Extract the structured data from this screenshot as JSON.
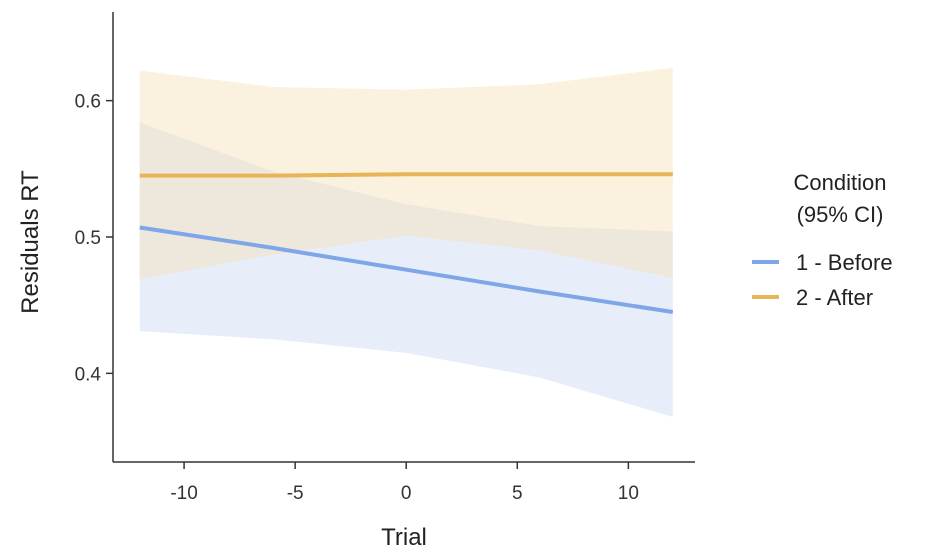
{
  "chart_data": {
    "type": "line",
    "title": "",
    "xlabel": "Trial",
    "ylabel": "Residuals RT",
    "xlim": [
      -13.2,
      13.0
    ],
    "ylim": [
      0.335,
      0.665
    ],
    "x_ticks": [
      -10,
      -5,
      0,
      5,
      10
    ],
    "x_tick_labels": [
      "-10",
      "-5",
      "0",
      "5",
      "10"
    ],
    "y_ticks": [
      0.4,
      0.5,
      0.6
    ],
    "y_tick_labels": [
      "0.4",
      "0.5",
      "0.6"
    ],
    "grid": false,
    "legend": {
      "title_lines": [
        "Condition",
        "(95% CI)"
      ],
      "position": "right"
    },
    "series": [
      {
        "name": "1 - Before",
        "color": "#7ea6e8",
        "ribbon_color": "#c9d9f4",
        "x": [
          -12,
          -6,
          0,
          6,
          12
        ],
        "y": [
          0.507,
          0.492,
          0.476,
          0.46,
          0.445
        ],
        "lower": [
          0.431,
          0.425,
          0.415,
          0.397,
          0.368
        ],
        "upper": [
          0.584,
          0.548,
          0.524,
          0.508,
          0.504
        ]
      },
      {
        "name": "2 - After",
        "color": "#e8b458",
        "ribbon_color": "#f3dfb6",
        "x": [
          -12,
          -6,
          0,
          6,
          12
        ],
        "y": [
          0.545,
          0.545,
          0.546,
          0.546,
          0.546
        ],
        "lower": [
          0.469,
          0.487,
          0.501,
          0.49,
          0.47
        ],
        "upper": [
          0.622,
          0.61,
          0.608,
          0.612,
          0.624
        ]
      }
    ]
  }
}
